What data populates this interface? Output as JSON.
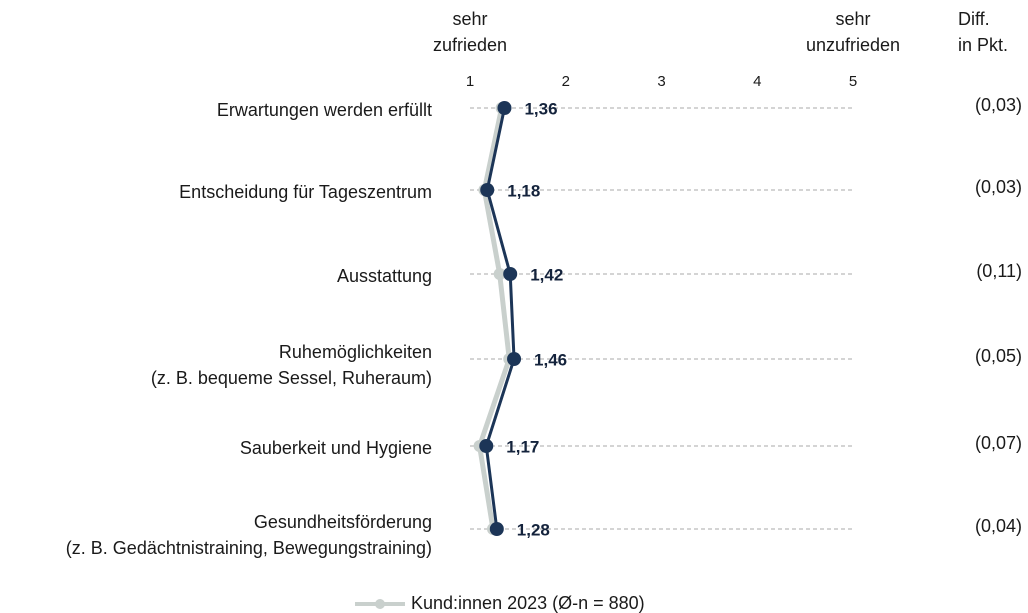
{
  "chart_data": {
    "type": "profile",
    "x_label_left": "sehr\nzufrieden",
    "x_label_right": "sehr\nunzufrieden",
    "categories": [
      "Erwartungen werden erfüllt",
      "Entscheidung für Tageszentrum",
      "Ausstattung",
      "Ruhemöglichkeiten\n(z. B. bequeme Sessel, Ruheraum)",
      "Sauberkeit und Hygiene",
      "Gesundheitsförderung\n(z. B. Gedächtnistraining, Bewegungstraining)"
    ],
    "xlim": [
      1,
      5
    ],
    "xticks": [
      1,
      2,
      3,
      4,
      5
    ],
    "grid": true,
    "series": [
      {
        "name": "Kund:innen 2023 (Ø-n = 880)",
        "color": "#c9d0cd",
        "values": [
          1.33,
          1.15,
          1.31,
          1.41,
          1.1,
          1.24
        ]
      },
      {
        "color": "#1c3557",
        "values": [
          1.36,
          1.18,
          1.42,
          1.46,
          1.17,
          1.28
        ],
        "value_labels": [
          "1,36",
          "1,18",
          "1,42",
          "1,46",
          "1,17",
          "1,28"
        ]
      }
    ],
    "diff": {
      "title": "Diff.\nin Pkt.",
      "values": [
        0.03,
        0.03,
        0.11,
        0.05,
        0.07,
        0.04
      ],
      "value_labels": [
        "(0,03)",
        "(0,03)",
        "(0,11)",
        "(0,05)",
        "(0,07)",
        "(0,04)"
      ]
    }
  }
}
